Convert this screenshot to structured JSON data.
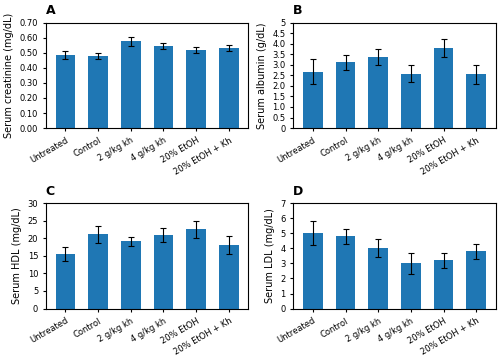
{
  "chart_data": [
    {
      "type": "bar",
      "title": "A",
      "categories": [
        "Untreated",
        "Control",
        "2 g/kg kh",
        "4 g/kg kh",
        "20% EtOH",
        "20% EtOH + Kh"
      ],
      "ylabel": "Serum creatinine (mg/dL)",
      "values": [
        0.485,
        0.478,
        0.575,
        0.545,
        0.515,
        0.53
      ],
      "errors": [
        0.025,
        0.018,
        0.03,
        0.022,
        0.02,
        0.02
      ],
      "ylim": [
        0,
        0.7
      ],
      "yticks": [
        {
          "value": 0,
          "label": "0.00"
        },
        {
          "value": 0.1,
          "label": "0.10"
        },
        {
          "value": 0.2,
          "label": "0.20"
        },
        {
          "value": 0.3,
          "label": "0.30"
        },
        {
          "value": 0.4,
          "label": "0.40"
        },
        {
          "value": 0.5,
          "label": "0.50"
        },
        {
          "value": 0.6,
          "label": "0.60"
        },
        {
          "value": 0.7,
          "label": "0.70"
        }
      ],
      "grid": false
    },
    {
      "type": "bar",
      "title": "B",
      "categories": [
        "Untreated",
        "Control",
        "2 g/kg kh",
        "4 g/kg kh",
        "20% EtOH",
        "20% EtOH + Kh"
      ],
      "ylabel": "Serum albumin (g/dL)",
      "values": [
        2.67,
        3.12,
        3.35,
        2.58,
        3.78,
        2.55
      ],
      "errors": [
        0.58,
        0.35,
        0.38,
        0.42,
        0.42,
        0.45
      ],
      "ylim": [
        0,
        5.0
      ],
      "yticks": [
        0,
        0.5,
        {
          "value": 1,
          "label": "1.0"
        },
        1.5,
        {
          "value": 2,
          "label": "2.0"
        },
        2.5,
        {
          "value": 3,
          "label": "3.0"
        },
        3.5,
        {
          "value": 4,
          "label": "4.0"
        },
        4.5,
        5
      ],
      "grid": false
    },
    {
      "type": "bar",
      "title": "C",
      "categories": [
        "Untreated",
        "Control",
        "2 g/kg kh",
        "4 g/kg kh",
        "20% EtOH",
        "20% EtOH + Kh"
      ],
      "ylabel": "Serum HDL (mg/dL)",
      "values": [
        15.6,
        21.1,
        19.1,
        20.8,
        22.5,
        18.0
      ],
      "errors": [
        2.0,
        2.5,
        1.2,
        2.0,
        2.5,
        2.5
      ],
      "ylim": [
        0,
        30
      ],
      "yticks": [
        0,
        5,
        10,
        15,
        20,
        25,
        30
      ],
      "grid": false
    },
    {
      "type": "bar",
      "title": "D",
      "categories": [
        "Untreated",
        "Control",
        "2 g/kg kh",
        "4 g/kg kh",
        "20% EtOH",
        "20% EtOH + Kh"
      ],
      "ylabel": "Serum LDL (mg/dL)",
      "values": [
        5.0,
        4.8,
        4.0,
        3.0,
        3.2,
        3.8
      ],
      "errors": [
        0.8,
        0.5,
        0.6,
        0.7,
        0.5,
        0.5
      ],
      "ylim": [
        0,
        7
      ],
      "yticks": [
        0,
        1,
        2,
        3,
        4,
        5,
        6,
        7
      ],
      "grid": false
    }
  ]
}
